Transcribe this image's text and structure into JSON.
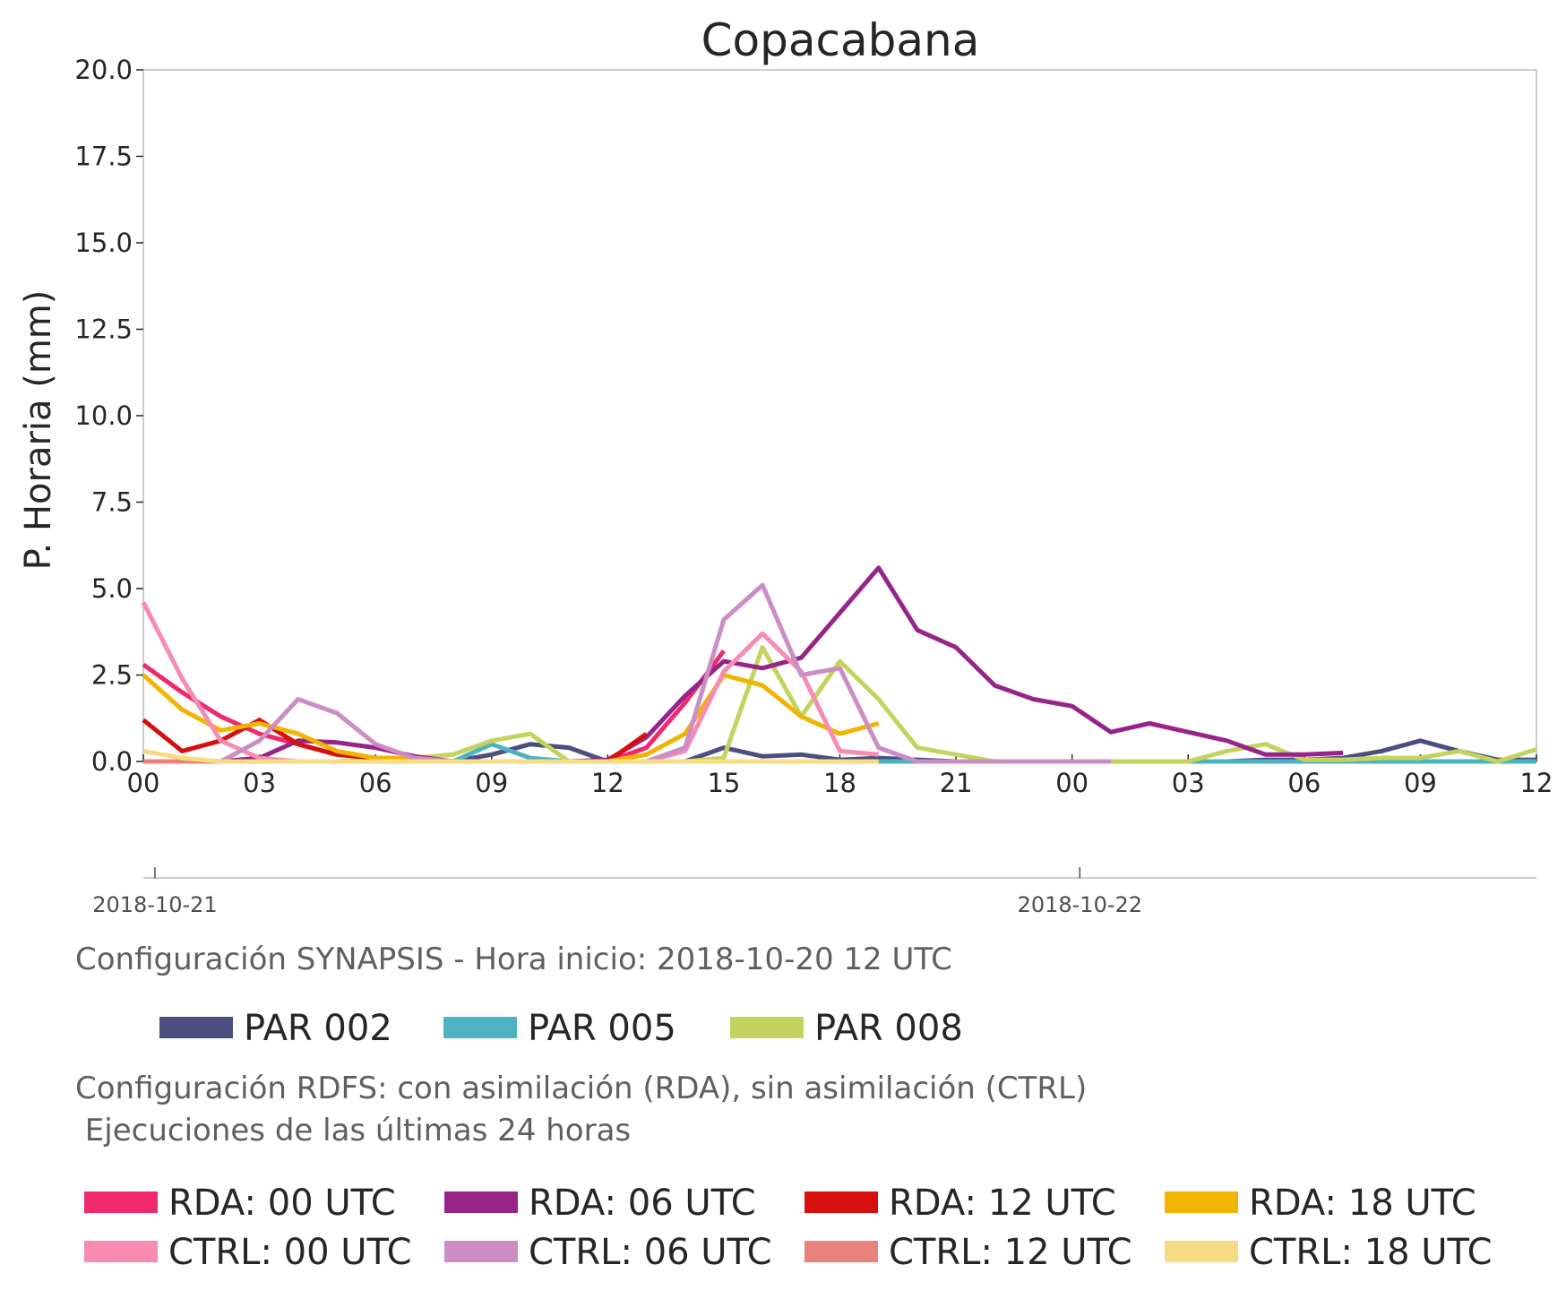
{
  "chart_data": {
    "type": "line",
    "title": "Copacabana",
    "ylabel": "P. Horaria (mm)",
    "xlabel": "",
    "ylim": [
      0,
      20
    ],
    "xlim": [
      0,
      36
    ],
    "yticks": [
      "0.0",
      "2.5",
      "5.0",
      "7.5",
      "10.0",
      "12.5",
      "15.0",
      "17.5",
      "20.0"
    ],
    "xticks": [
      "00",
      "03",
      "06",
      "09",
      "12",
      "15",
      "18",
      "21",
      "00",
      "03",
      "06",
      "09",
      "12"
    ],
    "date_labels": [
      "2018-10-21",
      "2018-10-22"
    ],
    "grid": false,
    "series": [
      {
        "name": "PAR 002",
        "color": "#4b4f80",
        "x": [
          0,
          1,
          2,
          3,
          4,
          5,
          6,
          7,
          8,
          9,
          10,
          11,
          12,
          13,
          14,
          15,
          16,
          17,
          18,
          19,
          20,
          21,
          22,
          23,
          24,
          25,
          26,
          27,
          28,
          29,
          30,
          31,
          32,
          33,
          34,
          35,
          36
        ],
        "y": [
          0,
          0,
          0,
          0,
          0,
          0,
          0,
          0,
          0,
          0.2,
          0.5,
          0.4,
          0,
          0,
          0,
          0.4,
          0.15,
          0.2,
          0.05,
          0.1,
          0.05,
          0,
          0,
          0,
          0,
          0,
          0,
          0,
          0,
          0.05,
          0.05,
          0.1,
          0.3,
          0.6,
          0.3,
          0.05,
          0.05
        ]
      },
      {
        "name": "PAR 005",
        "color": "#4db3c2",
        "x": [
          0,
          1,
          2,
          3,
          4,
          5,
          6,
          7,
          8,
          9,
          10,
          11,
          12,
          13,
          14,
          15,
          16,
          17,
          18,
          19,
          20,
          21,
          22,
          23,
          24,
          25,
          26,
          27,
          28,
          29,
          30,
          31,
          32,
          33,
          34,
          35,
          36
        ],
        "y": [
          0,
          0,
          0,
          0,
          0,
          0,
          0,
          0,
          0,
          0.5,
          0.1,
          0,
          0,
          0,
          0,
          0,
          0,
          0,
          0,
          0,
          0,
          0,
          0,
          0,
          0,
          0,
          0,
          0,
          0,
          0,
          0,
          0,
          0,
          0,
          0,
          0,
          0
        ]
      },
      {
        "name": "PAR 008",
        "color": "#c4d35d",
        "x": [
          0,
          1,
          2,
          3,
          4,
          5,
          6,
          7,
          8,
          9,
          10,
          11,
          12,
          13,
          14,
          15,
          16,
          17,
          18,
          19,
          20,
          21,
          22,
          23,
          24,
          25,
          26,
          27,
          28,
          29,
          30,
          31,
          32,
          33,
          34,
          35,
          36
        ],
        "y": [
          0,
          0,
          0,
          0,
          0,
          0,
          0.1,
          0.1,
          0.2,
          0.6,
          0.8,
          0,
          0,
          0,
          0,
          0.1,
          3.3,
          1.3,
          2.9,
          1.8,
          0.4,
          0.2,
          0,
          0,
          0,
          0,
          0,
          0,
          0.3,
          0.5,
          0.05,
          0.05,
          0.1,
          0.1,
          0.3,
          0,
          0.35
        ]
      },
      {
        "name": "RDA: 00 UTC",
        "color": "#f0286e",
        "x": [
          0,
          1,
          2,
          3,
          4,
          5,
          6,
          7,
          8,
          9,
          10,
          11,
          12,
          13,
          14,
          15
        ],
        "y": [
          2.8,
          2.0,
          1.3,
          0.8,
          0.5,
          0.2,
          0.1,
          0,
          0,
          0,
          0,
          0,
          0,
          0.4,
          1.7,
          3.2
        ]
      },
      {
        "name": "RDA: 06 UTC",
        "color": "#972488",
        "x": [
          0,
          1,
          2,
          3,
          4,
          5,
          6,
          7,
          8,
          9,
          10,
          11,
          12,
          13,
          14,
          15,
          16,
          17,
          18,
          19,
          20,
          21,
          22,
          23,
          24,
          25,
          26,
          27,
          28,
          29,
          30,
          31
        ],
        "y": [
          0,
          0,
          0,
          0.1,
          0.6,
          0.55,
          0.4,
          0.15,
          0,
          0,
          0,
          0,
          0.05,
          0.7,
          1.9,
          2.9,
          2.7,
          3.0,
          4.3,
          5.6,
          3.8,
          3.3,
          2.2,
          1.8,
          1.6,
          0.85,
          1.1,
          0.85,
          0.6,
          0.2,
          0.2,
          0.25
        ]
      },
      {
        "name": "RDA: 12 UTC",
        "color": "#d70f0f",
        "x": [
          0,
          1,
          2,
          3,
          4,
          5,
          6,
          7,
          8,
          9,
          10,
          11,
          12,
          13
        ],
        "y": [
          1.2,
          0.3,
          0.6,
          1.2,
          0.5,
          0.2,
          0.1,
          0,
          0,
          0,
          0,
          0,
          0,
          0.8
        ]
      },
      {
        "name": "RDA: 18 UTC",
        "color": "#f1b400",
        "x": [
          0,
          1,
          2,
          3,
          4,
          5,
          6,
          7,
          8,
          9,
          10,
          11,
          12,
          13,
          14,
          15,
          16,
          17,
          18,
          19
        ],
        "y": [
          2.5,
          1.5,
          0.9,
          1.1,
          0.8,
          0.3,
          0.1,
          0.1,
          0,
          0,
          0,
          0,
          0,
          0.2,
          0.8,
          2.5,
          2.2,
          1.3,
          0.8,
          1.1
        ]
      },
      {
        "name": "CTRL: 00 UTC",
        "color": "#f78bb2",
        "x": [
          0,
          1,
          2,
          3,
          4,
          5,
          6,
          7,
          8,
          9,
          10,
          11,
          12,
          13,
          14,
          15,
          16,
          17,
          18,
          19
        ],
        "y": [
          4.6,
          2.4,
          0.6,
          0.1,
          0,
          0,
          0,
          0,
          0,
          0,
          0,
          0,
          0,
          0,
          0.3,
          2.6,
          3.7,
          2.6,
          0.3,
          0.2
        ]
      },
      {
        "name": "CTRL: 06 UTC",
        "color": "#cb8ec4",
        "x": [
          0,
          1,
          2,
          3,
          4,
          5,
          6,
          7,
          8,
          9,
          10,
          11,
          12,
          13,
          14,
          15,
          16,
          17,
          18,
          19,
          20,
          21,
          22,
          23,
          24,
          25
        ],
        "y": [
          0,
          0,
          0,
          0.6,
          1.8,
          1.4,
          0.5,
          0.1,
          0,
          0,
          0,
          0,
          0,
          0,
          0.4,
          4.1,
          5.1,
          2.5,
          2.7,
          0.4,
          0,
          0,
          0,
          0,
          0,
          0
        ]
      },
      {
        "name": "CTRL: 12 UTC",
        "color": "#e9827b",
        "x": [
          0,
          1,
          2,
          3,
          4,
          5,
          6,
          7,
          8,
          9,
          10,
          11,
          12,
          13
        ],
        "y": [
          0,
          0,
          0,
          0,
          0,
          0,
          0,
          0,
          0,
          0,
          0,
          0,
          0,
          0
        ]
      },
      {
        "name": "CTRL: 18 UTC",
        "color": "#f7db83",
        "x": [
          0,
          1,
          2,
          3,
          4,
          5,
          6,
          7,
          8,
          9,
          10,
          11,
          12,
          13,
          14,
          15,
          16,
          17,
          18,
          19
        ],
        "y": [
          0.3,
          0.1,
          0,
          0,
          0,
          0,
          0,
          0,
          0,
          0,
          0,
          0,
          0,
          0,
          0,
          0,
          0,
          0,
          0,
          0
        ]
      }
    ]
  },
  "info": {
    "synapsis": "Configuración SYNAPSIS - Hora inicio: 2018-10-20 12 UTC",
    "rdfs_line1": "Configuración RDFS: con asimilación (RDA), sin asimilación (CTRL)",
    "rdfs_line2": " Ejecuciones de las últimas 24 horas"
  },
  "legend_par": [
    {
      "label": "PAR 002",
      "color": "#4b4f80"
    },
    {
      "label": "PAR 005",
      "color": "#4db3c2"
    },
    {
      "label": "PAR 008",
      "color": "#c4d35d"
    }
  ],
  "legend_rdfs": [
    {
      "label": "RDA: 00 UTC",
      "color": "#f0286e"
    },
    {
      "label": "RDA: 06 UTC",
      "color": "#972488"
    },
    {
      "label": "RDA: 12 UTC",
      "color": "#d70f0f"
    },
    {
      "label": "RDA: 18 UTC",
      "color": "#f1b400"
    },
    {
      "label": "CTRL: 00 UTC",
      "color": "#f78bb2"
    },
    {
      "label": "CTRL: 06 UTC",
      "color": "#cb8ec4"
    },
    {
      "label": "CTRL: 12 UTC",
      "color": "#e9827b"
    },
    {
      "label": "CTRL: 18 UTC",
      "color": "#f7db83"
    }
  ]
}
